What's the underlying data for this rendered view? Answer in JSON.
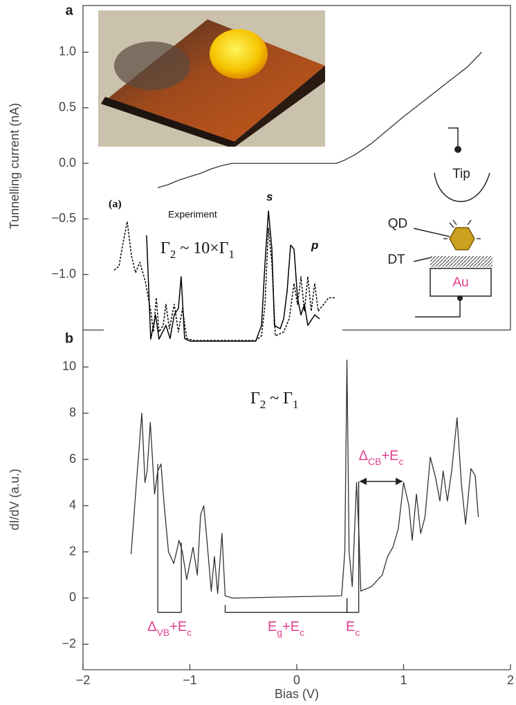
{
  "chart_data": [
    {
      "type": "line",
      "panel_label": "a",
      "ylabel": "Tunnelling current (nA)",
      "xlim": [
        -2,
        2
      ],
      "ylim": [
        -1.5,
        1.42
      ],
      "yticks": [
        {
          "value": -1,
          "label": "−1.0"
        },
        {
          "value": -0.5,
          "label": "−0.5"
        },
        {
          "value": 0,
          "label": "0.0"
        },
        0.5,
        {
          "value": 1,
          "label": "1.0"
        }
      ],
      "series": [
        {
          "color": "#333333",
          "x": [
            -1.3,
            -1.2,
            -1.1,
            -1.0,
            -0.9,
            -0.8,
            -0.7,
            -0.6,
            0.37,
            0.45,
            0.55,
            0.7,
            0.85,
            1.0,
            1.2,
            1.4,
            1.6,
            1.73
          ],
          "values": [
            -0.22,
            -0.19,
            -0.15,
            -0.12,
            -0.09,
            -0.05,
            -0.02,
            0.0,
            0.0,
            0.03,
            0.08,
            0.18,
            0.3,
            0.42,
            0.57,
            0.72,
            0.87,
            1.0
          ]
        }
      ],
      "schematic": {
        "tip": "Tip",
        "qd": "QD",
        "dt": "DT",
        "au": "Au"
      }
    },
    {
      "type": "line",
      "panel_label": "b",
      "xlabel": "Bias (V)",
      "ylabel": "dI/dV (a.u.)",
      "xlim": [
        -2,
        2
      ],
      "xticks": [
        {
          "value": -2,
          "label": "−2"
        },
        {
          "value": -1,
          "label": "−1"
        },
        0,
        1,
        2
      ],
      "ylim": [
        -3.1,
        11.6
      ],
      "yticks": [
        {
          "value": -2,
          "label": "−2"
        },
        0,
        2,
        4,
        6,
        8,
        10
      ],
      "series": [
        {
          "color": "#333333",
          "x": [
            -1.55,
            -1.5,
            -1.45,
            -1.42,
            -1.4,
            -1.37,
            -1.33,
            -1.3,
            -1.27,
            -1.24,
            -1.2,
            -1.15,
            -1.1,
            -1.07,
            -1.03,
            -1.0,
            -0.97,
            -0.93,
            -0.9,
            -0.87,
            -0.84,
            -0.8,
            -0.77,
            -0.74,
            -0.7,
            -0.67,
            -0.6,
            0.42,
            0.45,
            0.47,
            0.49,
            0.52,
            0.56,
            0.58,
            0.6,
            0.7,
            0.8,
            0.85,
            0.9,
            0.95,
            1.0,
            1.05,
            1.08,
            1.12,
            1.16,
            1.2,
            1.25,
            1.3,
            1.34,
            1.37,
            1.41,
            1.45,
            1.5,
            1.54,
            1.58,
            1.63,
            1.67,
            1.7
          ],
          "values": [
            1.9,
            5,
            8.0,
            5,
            5.5,
            7.6,
            4.5,
            5.5,
            5.8,
            4,
            2,
            1.5,
            2.5,
            2,
            0.8,
            1.5,
            2.2,
            1,
            3.6,
            4.0,
            2.5,
            0.3,
            1.8,
            0.2,
            2.8,
            0.1,
            0,
            0.1,
            2,
            10.3,
            2,
            0.5,
            5,
            3,
            0.3,
            0.5,
            1.0,
            1.8,
            2.2,
            3,
            5.0,
            4,
            2.5,
            4.5,
            2.8,
            3.5,
            6.1,
            5.2,
            4.2,
            5.5,
            4.2,
            5.5,
            7.8,
            5,
            3.2,
            5.6,
            5.3,
            3.5
          ]
        }
      ],
      "annotations": [
        {
          "text": [
            "Γ",
            "2",
            " ~ Γ",
            "1"
          ]
        }
      ],
      "brackets": [
        {
          "label": [
            "Δ",
            "VB",
            "+E",
            "c"
          ],
          "x": [
            -1.3,
            -1.08
          ],
          "y": -0.62,
          "tops": [
            5.8,
            2.4
          ]
        },
        {
          "label": [
            "E",
            "g",
            "+E",
            "c"
          ],
          "x": [
            -0.67,
            0.47
          ],
          "y": -0.62,
          "tops": [
            -0.3,
            0
          ]
        },
        {
          "label": [
            "E",
            "c"
          ],
          "x": [
            0.47,
            0.58
          ],
          "y": -0.62,
          "tops": [
            0,
            5.05
          ]
        }
      ],
      "arrow": {
        "label": [
          "Δ",
          "CB",
          "+E",
          "c"
        ],
        "x": [
          0.58,
          1.0
        ],
        "y": 5.05
      }
    },
    {
      "type": "line",
      "title": "(a)",
      "subtitle": "Experiment",
      "xlim": [
        0,
        100
      ],
      "ylim": [
        0,
        100
      ],
      "series": [
        {
          "color": "#000000",
          "dash": false,
          "x": [
            16.5,
            18.3,
            20.4,
            21.9,
            24.9,
            26.7,
            28.5,
            30.3,
            31.5,
            33,
            35.4,
            63.9,
            66.4,
            67.9,
            69.4,
            70.9,
            72,
            74.5,
            76,
            77.5,
            79,
            80.5,
            82,
            83.5,
            85,
            86.5,
            89.5,
            91.6
          ],
          "values": [
            81.6,
            2.6,
            21,
            2.6,
            13,
            3,
            21,
            26,
            50,
            3,
            1,
            1,
            13,
            60,
            100,
            71,
            13,
            10.5,
            18,
            39,
            74,
            71,
            34,
            21,
            29,
            13,
            21,
            18
          ]
        },
        {
          "color": "#000000",
          "dash": true,
          "x": [
            2.4,
            4.5,
            6.3,
            8.1,
            9.9,
            11.7,
            13.5,
            15.9,
            18.3,
            19.5,
            20.7,
            21.9,
            23.7,
            24.9,
            26.4,
            28.5,
            30.3,
            32.1,
            33.9,
            36.9,
            63.9,
            66.4,
            67.9,
            69.4,
            70.9,
            72.4,
            76,
            78.4,
            80.5,
            82,
            83.5,
            85,
            86.5,
            88,
            89.5,
            91,
            93.4,
            95.5,
            98.5
          ],
          "values": [
            55,
            58,
            76,
            92,
            66,
            53,
            61,
            47,
            24,
            8,
            34,
            8,
            13,
            29,
            10.5,
            29,
            8,
            26,
            3,
            1.5,
            1.5,
            5,
            29,
            87,
            60,
            5,
            8,
            18,
            45,
            29,
            50,
            24,
            50,
            24,
            45,
            24,
            29,
            34,
            34
          ]
        }
      ],
      "annotations": [
        {
          "text": [
            "s"
          ]
        },
        {
          "text": [
            "p"
          ]
        },
        {
          "text": [
            "Γ",
            "2",
            " ~ 10×Γ",
            "1"
          ]
        }
      ]
    }
  ]
}
